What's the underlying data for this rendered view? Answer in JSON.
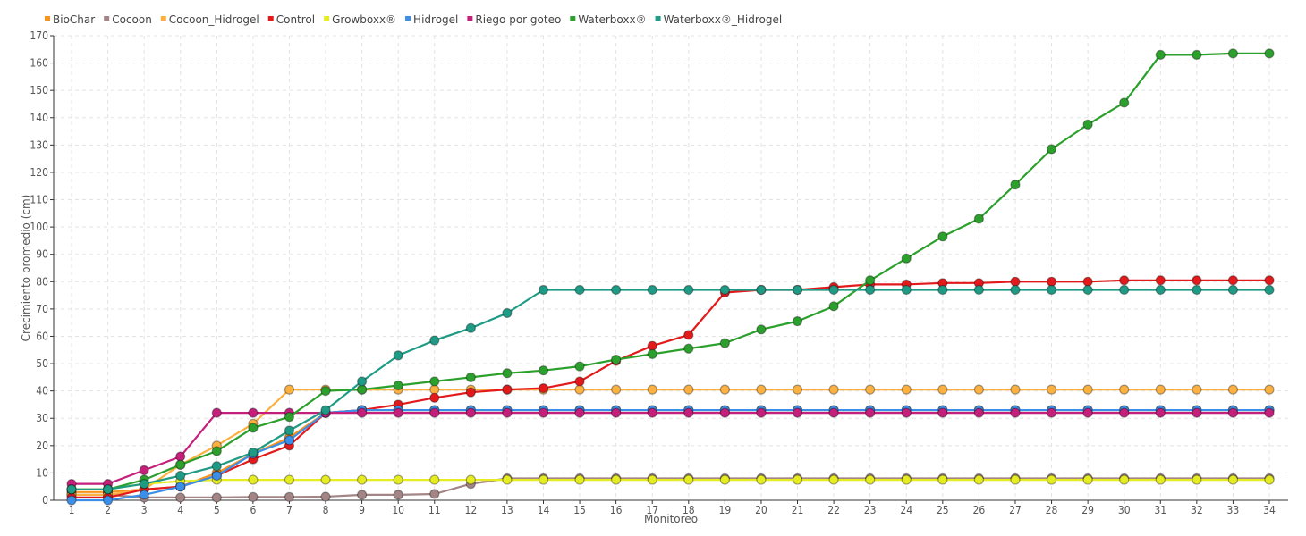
{
  "chart_data": {
    "type": "line",
    "title": "",
    "xlabel": "Monitoreo",
    "ylabel": "Crecimiento promedio (cm)",
    "ylim": [
      0,
      170
    ],
    "y_ticks": [
      "0",
      "10",
      "20",
      "30",
      "40",
      "50",
      "60",
      "70",
      "80",
      "90",
      "100",
      "110",
      "120",
      "130",
      "140",
      "150",
      "160",
      "170"
    ],
    "grid": true,
    "legend_position": "top-left",
    "x": [
      "1",
      "2",
      "3",
      "4",
      "5",
      "6",
      "7",
      "8",
      "9",
      "10",
      "11",
      "12",
      "13",
      "14",
      "15",
      "16",
      "17",
      "18",
      "19",
      "20",
      "21",
      "22",
      "23",
      "24",
      "25",
      "26",
      "27",
      "28",
      "29",
      "30",
      "31",
      "32",
      "33",
      "34"
    ],
    "series": [
      {
        "name": "BioChar",
        "color": "#f7941d",
        "values": [
          3,
          3,
          4,
          5,
          10,
          17,
          23,
          32,
          33,
          33,
          33,
          33,
          33,
          33,
          33,
          33,
          33,
          33,
          33,
          33,
          33,
          33,
          33,
          33,
          33,
          33,
          33,
          33,
          33,
          33,
          33,
          33,
          33,
          33
        ]
      },
      {
        "name": "Cocoon",
        "color": "#a38586",
        "values": [
          2,
          2,
          1,
          1,
          1,
          1.2,
          1.2,
          1.3,
          2,
          2,
          2.3,
          6,
          8,
          8,
          8,
          8,
          8,
          8,
          8,
          8,
          8,
          8,
          8,
          8,
          8,
          8,
          8,
          8,
          8,
          8,
          8,
          8,
          8,
          8
        ]
      },
      {
        "name": "Cocoon_Hidrogel",
        "color": "#fbb040",
        "values": [
          2,
          2,
          4,
          13,
          20,
          28,
          40.5,
          40.5,
          40.5,
          40.5,
          40.5,
          40.5,
          40.5,
          40.5,
          40.5,
          40.5,
          40.5,
          40.5,
          40.5,
          40.5,
          40.5,
          40.5,
          40.5,
          40.5,
          40.5,
          40.5,
          40.5,
          40.5,
          40.5,
          40.5,
          40.5,
          40.5,
          40.5,
          40.5
        ]
      },
      {
        "name": "Control",
        "color": "#e31a1c",
        "values": [
          1,
          1,
          4,
          5,
          9,
          15,
          20,
          32,
          33,
          35,
          37.5,
          39.5,
          40.5,
          41,
          43.5,
          51,
          56.5,
          60.5,
          76,
          77,
          77,
          78,
          79,
          79,
          79.5,
          79.5,
          80,
          80,
          80,
          80.5,
          80.5,
          80.5,
          80.5,
          80.5
        ]
      },
      {
        "name": "Growboxx®",
        "color": "#e5ec21",
        "values": [
          4,
          4,
          6,
          7,
          7.5,
          7.5,
          7.5,
          7.5,
          7.5,
          7.5,
          7.5,
          7.5,
          7.5,
          7.5,
          7.5,
          7.5,
          7.5,
          7.5,
          7.5,
          7.5,
          7.5,
          7.5,
          7.5,
          7.5,
          7.5,
          7.5,
          7.5,
          7.5,
          7.5,
          7.5,
          7.5,
          7.5,
          7.5,
          7.5
        ]
      },
      {
        "name": "Hidrogel",
        "color": "#3b8fe8",
        "values": [
          0,
          0,
          2,
          5,
          9,
          17,
          22,
          32,
          33,
          33,
          33,
          33,
          33,
          33,
          33,
          33,
          33,
          33,
          33,
          33,
          33,
          33,
          33,
          33,
          33,
          33,
          33,
          33,
          33,
          33,
          33,
          33,
          33,
          33
        ]
      },
      {
        "name": "Riego por goteo",
        "color": "#c41f7a",
        "values": [
          6,
          6,
          11,
          16,
          32,
          32,
          32,
          32,
          32,
          32,
          32,
          32,
          32,
          32,
          32,
          32,
          32,
          32,
          32,
          32,
          32,
          32,
          32,
          32,
          32,
          32,
          32,
          32,
          32,
          32,
          32,
          32,
          32,
          32
        ]
      },
      {
        "name": "Waterboxx®",
        "color": "#2ca02c",
        "values": [
          4,
          4,
          7.5,
          13,
          18,
          26.5,
          30.5,
          40,
          40.5,
          42,
          43.5,
          45,
          46.5,
          47.5,
          49,
          51.5,
          53.5,
          55.5,
          57.5,
          62.5,
          65.5,
          71,
          80.5,
          88.5,
          96.5,
          103,
          115.5,
          128.5,
          137.5,
          145.5,
          163,
          163,
          163.5,
          163.5
        ]
      },
      {
        "name": "Waterboxx®_Hidrogel",
        "color": "#1f9b85",
        "values": [
          4,
          4,
          6,
          9,
          12.5,
          17.5,
          25.5,
          33,
          43.5,
          53,
          58.5,
          63,
          68.5,
          77,
          77,
          77,
          77,
          77,
          77,
          77,
          77,
          77,
          77,
          77,
          77,
          77,
          77,
          77,
          77,
          77,
          77,
          77,
          77,
          77
        ]
      }
    ]
  }
}
